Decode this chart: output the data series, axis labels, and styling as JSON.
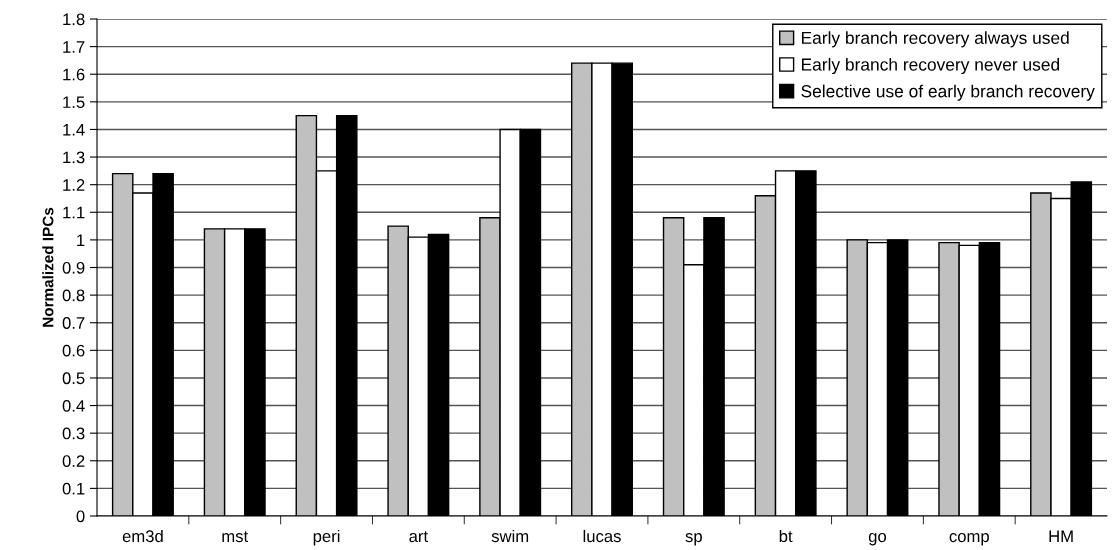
{
  "chart_data": {
    "type": "bar",
    "ylabel": "Normalized IPCs",
    "categories": [
      "em3d",
      "mst",
      "peri",
      "art",
      "swim",
      "lucas",
      "sp",
      "bt",
      "go",
      "comp",
      "HM"
    ],
    "series": [
      {
        "name": "Early branch recovery always used",
        "color": "#c0c0c0",
        "values": [
          1.24,
          1.04,
          1.45,
          1.05,
          1.08,
          1.64,
          1.08,
          1.16,
          1.0,
          0.99,
          1.17
        ]
      },
      {
        "name": "Early branch recovery never used",
        "color": "#ffffff",
        "values": [
          1.17,
          1.04,
          1.25,
          1.01,
          1.4,
          1.64,
          0.91,
          1.25,
          0.99,
          0.98,
          1.15
        ]
      },
      {
        "name": "Selective use of early branch recovery",
        "color": "#000000",
        "values": [
          1.24,
          1.04,
          1.45,
          1.02,
          1.4,
          1.64,
          1.08,
          1.25,
          1.0,
          0.99,
          1.21
        ]
      }
    ],
    "ylim": [
      0,
      1.8
    ],
    "yticks": [
      0,
      0.1,
      0.2,
      0.3,
      0.4,
      0.5,
      0.6,
      0.7,
      0.8,
      0.9,
      {
        "value": 1.0,
        "label": "1"
      },
      1.1,
      1.2,
      1.3,
      1.4,
      1.5,
      1.6,
      1.7,
      1.8
    ],
    "grid": "y",
    "legend": "top right"
  }
}
